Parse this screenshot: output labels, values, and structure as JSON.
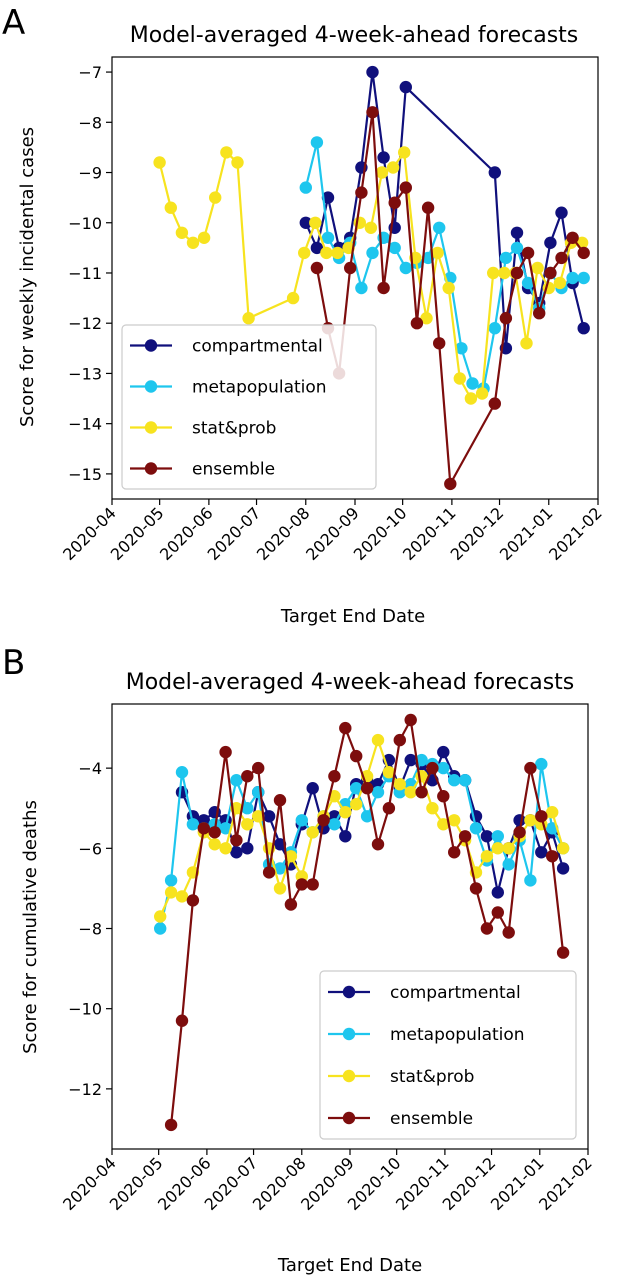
{
  "chart_data": [
    {
      "type": "line",
      "panel_letter": "A",
      "title": "Model-averaged 4-week-ahead forecasts",
      "xlabel": "Target End Date",
      "ylabel": "Score for weekly incidental cases",
      "xlim": [
        "2020-04-01",
        "2021-02-01"
      ],
      "ylim": [
        -15.5,
        -6.7
      ],
      "xticks": [
        "2020-04-01",
        "2020-05-01",
        "2020-06-01",
        "2020-07-01",
        "2020-08-01",
        "2020-09-01",
        "2020-10-01",
        "2020-11-01",
        "2020-12-01",
        "2021-01-01",
        "2021-02-01"
      ],
      "xtick_labels": [
        "2020-04",
        "2020-05",
        "2020-06",
        "2020-07",
        "2020-08",
        "2020-09",
        "2020-10",
        "2020-11",
        "2020-12",
        "2021-01",
        "2021-02"
      ],
      "yticks": [
        -15,
        -14,
        -13,
        -12,
        -11,
        -10,
        -9,
        -8,
        -7
      ],
      "ytick_labels": [
        "−15",
        "−14",
        "−13",
        "−12",
        "−11",
        "−10",
        "−9",
        "−8",
        "−7"
      ],
      "grid": false,
      "legend_position": "lower-left",
      "series": [
        {
          "name": "compartmental",
          "color": "#10107c",
          "x": [
            "2020-08-01",
            "2020-08-08",
            "2020-08-15",
            "2020-08-22",
            "2020-08-29",
            "2020-09-05",
            "2020-09-12",
            "2020-09-19",
            "2020-09-26",
            "2020-10-03",
            "2020-11-28",
            "2020-12-05",
            "2020-12-12",
            "2020-12-19",
            "2020-12-26",
            "2021-01-02",
            "2021-01-09",
            "2021-01-16",
            "2021-01-23"
          ],
          "y": [
            -10.0,
            -10.5,
            -9.5,
            -10.5,
            -10.3,
            -8.9,
            -7.0,
            -8.7,
            -10.1,
            -7.3,
            -9.0,
            -12.5,
            -10.2,
            -11.3,
            -11.6,
            -10.4,
            -9.8,
            -11.2,
            -12.1
          ]
        },
        {
          "name": "metapopulation",
          "color": "#1ec6ee",
          "x": [
            "2020-08-01",
            "2020-08-08",
            "2020-08-15",
            "2020-08-22",
            "2020-08-29",
            "2020-09-05",
            "2020-09-12",
            "2020-09-19",
            "2020-09-26",
            "2020-10-03",
            "2020-10-10",
            "2020-10-17",
            "2020-10-24",
            "2020-10-31",
            "2020-11-07",
            "2020-11-14",
            "2020-11-21",
            "2020-11-28",
            "2020-12-05",
            "2020-12-12",
            "2020-12-19",
            "2020-12-26",
            "2021-01-02",
            "2021-01-09",
            "2021-01-16",
            "2021-01-23"
          ],
          "y": [
            -9.3,
            -8.4,
            -10.3,
            -10.7,
            -10.4,
            -11.3,
            -10.6,
            -10.3,
            -10.5,
            -10.9,
            -10.8,
            -10.7,
            -10.1,
            -11.1,
            -12.5,
            -13.2,
            -13.3,
            -12.1,
            -10.7,
            -10.5,
            -11.2,
            -11.7,
            -11.0,
            -11.3,
            -11.1,
            -11.1
          ]
        },
        {
          "name": "stat&prob",
          "color": "#f7e31f",
          "x": [
            "2020-05-01",
            "2020-05-08",
            "2020-05-15",
            "2020-05-22",
            "2020-05-29",
            "2020-06-05",
            "2020-06-12",
            "2020-06-19",
            "2020-06-26",
            "2020-07-24",
            "2020-07-31",
            "2020-08-07",
            "2020-08-14",
            "2020-08-21",
            "2020-08-28",
            "2020-09-04",
            "2020-09-11",
            "2020-09-18",
            "2020-09-25",
            "2020-10-02",
            "2020-10-09",
            "2020-10-16",
            "2020-10-23",
            "2020-10-30",
            "2020-11-06",
            "2020-11-13",
            "2020-11-20",
            "2020-11-27",
            "2020-12-04",
            "2020-12-11",
            "2020-12-18",
            "2020-12-25",
            "2021-01-01",
            "2021-01-08",
            "2021-01-15",
            "2021-01-22"
          ],
          "y": [
            -8.8,
            -9.7,
            -10.2,
            -10.4,
            -10.3,
            -9.5,
            -8.6,
            -8.8,
            -11.9,
            -11.5,
            -10.6,
            -10.0,
            -10.6,
            -10.6,
            -10.5,
            -10.0,
            -10.1,
            -9.0,
            -8.9,
            -8.6,
            -10.7,
            -11.9,
            -10.6,
            -11.3,
            -13.1,
            -13.5,
            -13.4,
            -11.0,
            -11.0,
            -11.0,
            -12.4,
            -10.9,
            -11.3,
            -11.2,
            -10.4,
            -10.4
          ]
        },
        {
          "name": "ensemble",
          "color": "#7d0d0d",
          "x": [
            "2020-08-08",
            "2020-08-15",
            "2020-08-22",
            "2020-08-29",
            "2020-09-05",
            "2020-09-12",
            "2020-09-19",
            "2020-09-26",
            "2020-10-03",
            "2020-10-10",
            "2020-10-17",
            "2020-10-24",
            "2020-10-31",
            "2020-11-28",
            "2020-12-05",
            "2020-12-12",
            "2020-12-19",
            "2020-12-26",
            "2021-01-02",
            "2021-01-09",
            "2021-01-16",
            "2021-01-23"
          ],
          "y": [
            -10.9,
            -12.1,
            -13.0,
            -10.9,
            -9.4,
            -7.8,
            -11.3,
            -9.6,
            -9.3,
            -12.0,
            -9.7,
            -12.4,
            -15.2,
            -13.6,
            -11.9,
            -11.0,
            -10.6,
            -11.8,
            -11.0,
            -10.7,
            -10.3,
            -10.6
          ]
        }
      ]
    },
    {
      "type": "line",
      "panel_letter": "B",
      "title": "Model-averaged 4-week-ahead forecasts",
      "xlabel": "Target End Date",
      "ylabel": "Score for cumulative deaths",
      "xlim": [
        "2020-04-01",
        "2021-02-01"
      ],
      "ylim": [
        -13.5,
        -2.4
      ],
      "xticks": [
        "2020-04-01",
        "2020-05-01",
        "2020-06-01",
        "2020-07-01",
        "2020-08-01",
        "2020-09-01",
        "2020-10-01",
        "2020-11-01",
        "2020-12-01",
        "2021-01-01",
        "2021-02-01"
      ],
      "xtick_labels": [
        "2020-04",
        "2020-05",
        "2020-06",
        "2020-07",
        "2020-08",
        "2020-09",
        "2020-10",
        "2020-11",
        "2020-12",
        "2021-01",
        "2021-02"
      ],
      "yticks": [
        -12,
        -10,
        -8,
        -6,
        -4
      ],
      "ytick_labels": [
        "−12",
        "−10",
        "−8",
        "−6",
        "−4"
      ],
      "grid": false,
      "legend_position": "lower-right",
      "series": [
        {
          "name": "compartmental",
          "color": "#10107c",
          "x": [
            "2020-05-16",
            "2020-05-23",
            "2020-05-30",
            "2020-06-06",
            "2020-06-13",
            "2020-06-20",
            "2020-06-27",
            "2020-07-04",
            "2020-07-11",
            "2020-07-18",
            "2020-07-25",
            "2020-08-01",
            "2020-08-08",
            "2020-08-15",
            "2020-08-22",
            "2020-08-29",
            "2020-09-05",
            "2020-09-12",
            "2020-09-19",
            "2020-09-26",
            "2020-10-03",
            "2020-10-10",
            "2020-10-17",
            "2020-10-24",
            "2020-10-31",
            "2020-11-07",
            "2020-11-14",
            "2020-11-21",
            "2020-11-28",
            "2020-12-05",
            "2020-12-12",
            "2020-12-19",
            "2020-12-26",
            "2021-01-02",
            "2021-01-09",
            "2021-01-16"
          ],
          "y": [
            -4.6,
            -5.2,
            -5.3,
            -5.1,
            -5.3,
            -6.1,
            -6.0,
            -4.6,
            -5.2,
            -5.9,
            -6.4,
            -5.4,
            -4.5,
            -5.5,
            -5.2,
            -5.7,
            -4.4,
            -4.3,
            -4.4,
            -3.8,
            -4.5,
            -3.8,
            -3.9,
            -4.3,
            -3.6,
            -4.2,
            -4.3,
            -5.2,
            -5.7,
            -7.1,
            -6.0,
            -5.3,
            -5.3,
            -6.1,
            -5.6,
            -6.5
          ]
        },
        {
          "name": "metapopulation",
          "color": "#1ec6ee",
          "x": [
            "2020-05-02",
            "2020-05-09",
            "2020-05-16",
            "2020-05-23",
            "2020-05-30",
            "2020-06-06",
            "2020-06-13",
            "2020-06-20",
            "2020-06-27",
            "2020-07-04",
            "2020-07-11",
            "2020-07-18",
            "2020-07-25",
            "2020-08-01",
            "2020-08-08",
            "2020-08-15",
            "2020-08-22",
            "2020-08-29",
            "2020-09-05",
            "2020-09-12",
            "2020-09-19",
            "2020-09-26",
            "2020-10-03",
            "2020-10-10",
            "2020-10-17",
            "2020-10-24",
            "2020-10-31",
            "2020-11-07",
            "2020-11-14",
            "2020-11-21",
            "2020-11-28",
            "2020-12-05",
            "2020-12-12",
            "2020-12-19",
            "2020-12-26",
            "2021-01-02",
            "2021-01-09",
            "2021-01-16"
          ],
          "y": [
            -8.0,
            -6.8,
            -4.1,
            -5.4,
            -5.5,
            -5.4,
            -5.5,
            -4.3,
            -5.0,
            -4.6,
            -6.4,
            -6.5,
            -6.1,
            -5.3,
            -5.6,
            -5.2,
            -5.4,
            -4.9,
            -4.5,
            -5.2,
            -4.6,
            -4.2,
            -4.6,
            -4.4,
            -3.8,
            -3.9,
            -4.0,
            -4.3,
            -4.3,
            -5.5,
            -6.3,
            -5.7,
            -6.4,
            -5.8,
            -6.8,
            -3.9,
            -5.5,
            -6.0
          ]
        },
        {
          "name": "stat&prob",
          "color": "#f7e31f",
          "x": [
            "2020-05-02",
            "2020-05-09",
            "2020-05-16",
            "2020-05-23",
            "2020-05-30",
            "2020-06-06",
            "2020-06-13",
            "2020-06-20",
            "2020-06-27",
            "2020-07-04",
            "2020-07-11",
            "2020-07-18",
            "2020-07-25",
            "2020-08-01",
            "2020-08-08",
            "2020-08-15",
            "2020-08-22",
            "2020-08-29",
            "2020-09-05",
            "2020-09-12",
            "2020-09-19",
            "2020-09-26",
            "2020-10-03",
            "2020-10-10",
            "2020-10-17",
            "2020-10-24",
            "2020-10-31",
            "2020-11-07",
            "2020-11-14",
            "2020-11-21",
            "2020-11-28",
            "2020-12-05",
            "2020-12-12",
            "2020-12-19",
            "2020-12-26",
            "2021-01-02",
            "2021-01-09",
            "2021-01-16"
          ],
          "y": [
            -7.7,
            -7.1,
            -7.2,
            -6.6,
            -5.6,
            -5.9,
            -6.0,
            -5.0,
            -5.4,
            -5.2,
            -6.0,
            -7.0,
            -6.2,
            -6.7,
            -5.6,
            -5.2,
            -4.7,
            -5.1,
            -4.9,
            -4.2,
            -3.3,
            -4.1,
            -4.4,
            -4.6,
            -4.2,
            -5.0,
            -5.4,
            -5.3,
            -5.8,
            -6.6,
            -6.2,
            -6.0,
            -6.0,
            -5.7,
            -5.3,
            -5.4,
            -5.1,
            -6.0
          ]
        },
        {
          "name": "ensemble",
          "color": "#7d0d0d",
          "x": [
            "2020-05-09",
            "2020-05-16",
            "2020-05-23",
            "2020-05-30",
            "2020-06-06",
            "2020-06-13",
            "2020-06-20",
            "2020-06-27",
            "2020-07-04",
            "2020-07-11",
            "2020-07-18",
            "2020-07-25",
            "2020-08-01",
            "2020-08-08",
            "2020-08-15",
            "2020-08-22",
            "2020-08-29",
            "2020-09-05",
            "2020-09-12",
            "2020-09-19",
            "2020-09-26",
            "2020-10-03",
            "2020-10-10",
            "2020-10-17",
            "2020-10-24",
            "2020-10-31",
            "2020-11-07",
            "2020-11-14",
            "2020-11-21",
            "2020-11-28",
            "2020-12-05",
            "2020-12-12",
            "2020-12-19",
            "2020-12-26",
            "2021-01-02",
            "2021-01-09",
            "2021-01-16"
          ],
          "y": [
            -12.9,
            -10.3,
            -7.3,
            -5.5,
            -5.6,
            -3.6,
            -5.8,
            -4.2,
            -4.0,
            -6.6,
            -4.8,
            -7.4,
            -6.9,
            -6.9,
            -5.3,
            -4.2,
            -3.0,
            -3.7,
            -4.5,
            -5.9,
            -5.0,
            -3.3,
            -2.8,
            -4.6,
            -4.0,
            -4.7,
            -6.1,
            -5.7,
            -7.0,
            -8.0,
            -7.6,
            -8.1,
            -5.6,
            -4.0,
            -5.2,
            -6.2,
            -8.6
          ]
        }
      ]
    }
  ]
}
